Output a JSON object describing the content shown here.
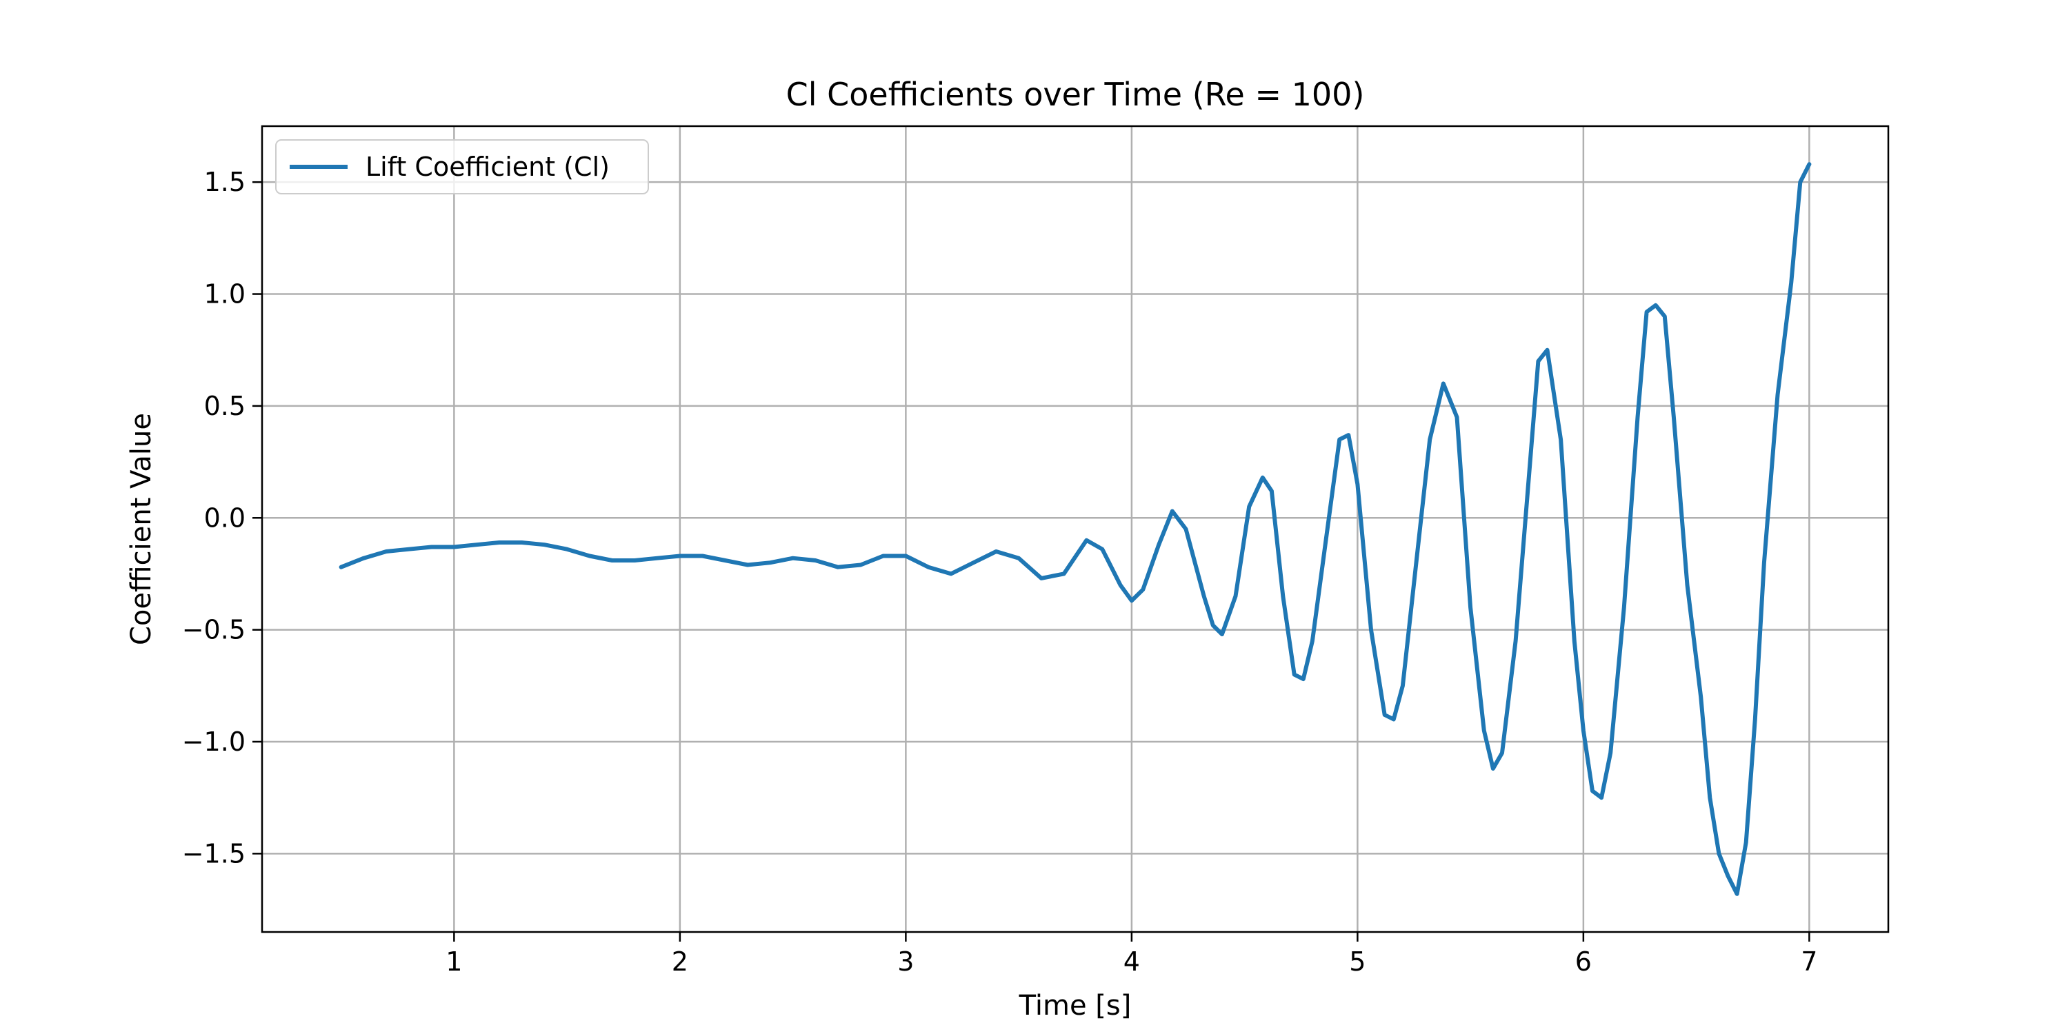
{
  "chart_data": {
    "type": "line",
    "title": "Cl Coefficients over Time (Re = 100)",
    "xlabel": "Time [s]",
    "ylabel": "Coefficient Value",
    "xlim": [
      0.15,
      7.35
    ],
    "ylim": [
      -1.85,
      1.75
    ],
    "xticks": [
      1,
      2,
      3,
      4,
      5,
      6,
      7
    ],
    "xtick_labels": [
      "1",
      "2",
      "3",
      "4",
      "5",
      "6",
      "7"
    ],
    "yticks": [
      -1.5,
      -1.0,
      -0.5,
      0.0,
      0.5,
      1.0,
      1.5
    ],
    "ytick_labels": [
      "−1.5",
      "−1.0",
      "−0.5",
      "0.0",
      "0.5",
      "1.0",
      "1.5"
    ],
    "grid": true,
    "legend_position": "top-left",
    "series": [
      {
        "name": "Lift Coefficient (Cl)",
        "color": "#1f77b4",
        "x": [
          0.5,
          0.6,
          0.7,
          0.8,
          0.9,
          1.0,
          1.1,
          1.2,
          1.3,
          1.4,
          1.5,
          1.6,
          1.7,
          1.8,
          1.9,
          2.0,
          2.1,
          2.2,
          2.3,
          2.4,
          2.5,
          2.6,
          2.7,
          2.8,
          2.9,
          3.0,
          3.1,
          3.2,
          3.3,
          3.4,
          3.5,
          3.6,
          3.7,
          3.8,
          3.87,
          3.95,
          4.0,
          4.05,
          4.12,
          4.18,
          4.24,
          4.32,
          4.36,
          4.4,
          4.46,
          4.52,
          4.58,
          4.62,
          4.67,
          4.72,
          4.76,
          4.8,
          4.86,
          4.92,
          4.96,
          5.0,
          5.06,
          5.12,
          5.16,
          5.2,
          5.26,
          5.32,
          5.38,
          5.44,
          5.5,
          5.56,
          5.6,
          5.64,
          5.7,
          5.76,
          5.8,
          5.84,
          5.9,
          5.96,
          6.0,
          6.04,
          6.08,
          6.12,
          6.18,
          6.24,
          6.28,
          6.32,
          6.36,
          6.4,
          6.46,
          6.52,
          6.56,
          6.6,
          6.64,
          6.68,
          6.72,
          6.76,
          6.8,
          6.86,
          6.92,
          6.96,
          7.0
        ],
        "y": [
          -0.22,
          -0.18,
          -0.15,
          -0.14,
          -0.13,
          -0.13,
          -0.12,
          -0.11,
          -0.11,
          -0.12,
          -0.14,
          -0.17,
          -0.19,
          -0.19,
          -0.18,
          -0.17,
          -0.17,
          -0.19,
          -0.21,
          -0.2,
          -0.18,
          -0.19,
          -0.22,
          -0.21,
          -0.17,
          -0.17,
          -0.22,
          -0.25,
          -0.2,
          -0.15,
          -0.18,
          -0.27,
          -0.25,
          -0.1,
          -0.14,
          -0.3,
          -0.37,
          -0.32,
          -0.12,
          0.03,
          -0.05,
          -0.35,
          -0.48,
          -0.52,
          -0.35,
          0.05,
          0.18,
          0.12,
          -0.35,
          -0.7,
          -0.72,
          -0.55,
          -0.1,
          0.35,
          0.37,
          0.15,
          -0.5,
          -0.88,
          -0.9,
          -0.75,
          -0.2,
          0.35,
          0.6,
          0.45,
          -0.4,
          -0.95,
          -1.12,
          -1.05,
          -0.55,
          0.2,
          0.7,
          0.75,
          0.35,
          -0.55,
          -0.95,
          -1.22,
          -1.25,
          -1.05,
          -0.4,
          0.45,
          0.92,
          0.95,
          0.9,
          0.45,
          -0.3,
          -0.8,
          -1.25,
          -1.5,
          -1.6,
          -1.68,
          -1.45,
          -0.9,
          -0.2,
          0.55,
          1.05,
          1.5,
          1.58
        ]
      }
    ]
  }
}
